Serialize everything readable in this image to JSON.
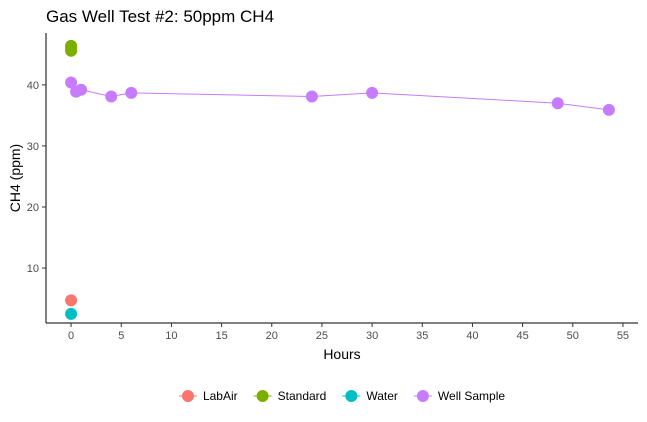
{
  "chart_data": {
    "type": "scatter",
    "title": "Gas Well Test #2: 50ppm CH4",
    "xlabel": "Hours",
    "ylabel": "CH4 (ppm)",
    "xlim": [
      -2.5,
      56.5
    ],
    "ylim": [
      1,
      48.5
    ],
    "xticks": [
      0,
      5,
      10,
      15,
      20,
      25,
      30,
      35,
      40,
      45,
      50,
      55
    ],
    "yticks": [
      10,
      20,
      30,
      40
    ],
    "grid": false,
    "legend_position": "bottom",
    "series": [
      {
        "name": "LabAir",
        "color": "#F8766D",
        "line": false,
        "points": [
          [
            0,
            4.7
          ]
        ]
      },
      {
        "name": "Standard",
        "color": "#7CAE00",
        "line": false,
        "points": [
          [
            0,
            45.6
          ],
          [
            0,
            46.1
          ],
          [
            0,
            46.4
          ]
        ]
      },
      {
        "name": "Water",
        "color": "#00BFC4",
        "line": false,
        "points": [
          [
            0,
            2.5
          ]
        ]
      },
      {
        "name": "Well Sample",
        "color": "#C77CFF",
        "line": true,
        "points": [
          [
            0,
            40.4
          ],
          [
            0.5,
            38.9
          ],
          [
            1,
            39.2
          ],
          [
            4,
            38.1
          ],
          [
            6,
            38.7
          ],
          [
            24,
            38.1
          ],
          [
            30,
            38.7
          ],
          [
            48.5,
            37.0
          ],
          [
            53.6,
            35.9
          ]
        ]
      }
    ]
  }
}
